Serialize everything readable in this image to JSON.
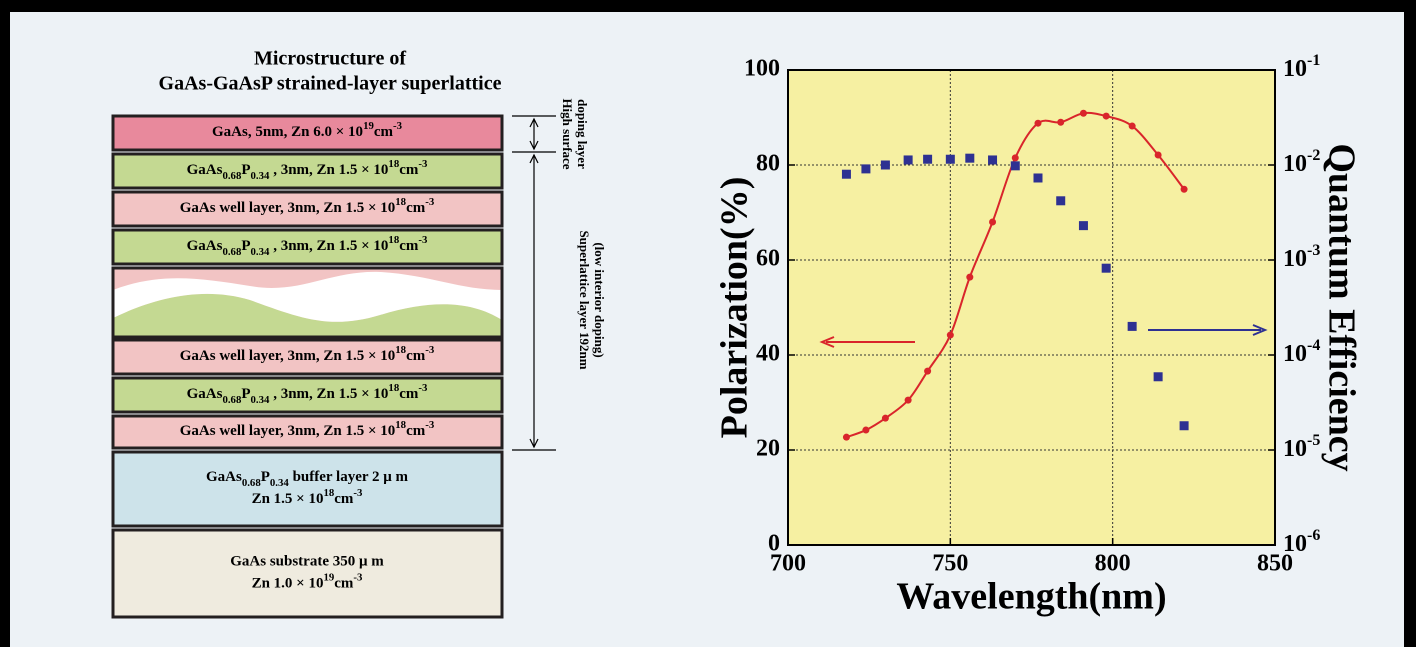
{
  "diagram": {
    "title": [
      "Microstructure of",
      "GaAs-GaAsP strained-layer superlattice"
    ],
    "layers": [
      {
        "color": "#e8899c",
        "lines": [
          [
            "GaAs, 5nm, Zn 6.0 × 10",
            {
              "sup": "19"
            },
            "cm",
            {
              "sup": "-3"
            }
          ]
        ]
      },
      {
        "color": "#c4d992",
        "lines": [
          [
            "GaAs",
            {
              "sub": "0.68"
            },
            "P",
            {
              "sub": "0.34"
            },
            " , 3nm, Zn 1.5 × 10",
            {
              "sup": "18"
            },
            "cm",
            {
              "sup": "-3"
            }
          ]
        ]
      },
      {
        "color": "#f2c4c4",
        "lines": [
          [
            "GaAs well layer, 3nm, Zn 1.5 × 10",
            {
              "sup": "18"
            },
            "cm",
            {
              "sup": "-3"
            }
          ]
        ]
      },
      {
        "color": "#c4d992",
        "lines": [
          [
            "GaAs",
            {
              "sub": "0.68"
            },
            "P",
            {
              "sub": "0.34"
            },
            " , 3nm, Zn 1.5 × 10",
            {
              "sup": "18"
            },
            "cm",
            {
              "sup": "-3"
            }
          ]
        ]
      },
      {
        "color": "#f2c4c4",
        "lines": []
      },
      {
        "color": "#f2c4c4",
        "lines": [
          [
            "GaAs well layer, 3nm, Zn 1.5 × 10",
            {
              "sup": "18"
            },
            "cm",
            {
              "sup": "-3"
            }
          ]
        ]
      },
      {
        "color": "#c4d992",
        "lines": [
          [
            "GaAs",
            {
              "sub": "0.68"
            },
            "P",
            {
              "sub": "0.34"
            },
            " , 3nm, Zn 1.5 × 10",
            {
              "sup": "18"
            },
            "cm",
            {
              "sup": "-3"
            }
          ]
        ]
      },
      {
        "color": "#f2c4c4",
        "lines": [
          [
            "GaAs well layer, 3nm, Zn 1.5 × 10",
            {
              "sup": "18"
            },
            "cm",
            {
              "sup": "-3"
            }
          ]
        ]
      },
      {
        "color": "#cde3ea",
        "lines": [
          [
            "GaAs",
            {
              "sub": "0.68"
            },
            "P",
            {
              "sub": "0.34"
            },
            " buffer layer 2 μ m"
          ],
          [
            "Zn 1.5 × 10",
            {
              "sup": "18"
            },
            "cm",
            {
              "sup": "-3"
            }
          ]
        ]
      },
      {
        "color": "#efebdf",
        "lines": [
          [
            "GaAs substrate 350 μ m"
          ],
          [
            "Zn 1.0 × 10",
            {
              "sup": "19"
            },
            "cm",
            {
              "sup": "-3"
            }
          ]
        ]
      }
    ],
    "brackets": [
      {
        "lines": [
          "High surface",
          "doping layer"
        ]
      },
      {
        "lines": [
          "Superlattice layer 192nm",
          "(low interior doping)"
        ]
      }
    ]
  },
  "chart_data": {
    "type": "line",
    "x_label": "Wavelength(nm)",
    "y_label": "Polarization(%)",
    "y2_label": "Quantum Efficiency",
    "x": [
      718,
      724,
      730,
      737,
      743,
      750,
      756,
      763,
      770,
      777,
      784,
      791,
      798,
      806,
      814,
      822
    ],
    "series": [
      {
        "color": "#d9252b",
        "marker": "circle",
        "values": [
          22.7,
          24.2,
          26.7,
          30.5,
          36.6,
          44.2,
          56.4,
          68,
          81.5,
          88.8,
          89,
          90.9,
          90.3,
          88.2,
          82.1,
          74.9
        ]
      },
      {
        "color": "#2e3192",
        "marker": "square",
        "axis": "y2",
        "values": [
          0.008,
          0.0091,
          0.01,
          0.0113,
          0.0115,
          0.0115,
          0.0118,
          0.0113,
          0.0098,
          0.0073,
          0.0042,
          0.0023,
          0.00082,
          0.0002,
          5.9e-05,
          1.8e-05
        ]
      }
    ],
    "xlim": [
      700,
      850
    ],
    "xticks": [
      700,
      750,
      800,
      850
    ],
    "ylim": [
      0,
      100
    ],
    "yticks": [
      0,
      20,
      40,
      60,
      80,
      100
    ],
    "y2lim": [
      1e-06,
      0.1
    ],
    "y2log": true,
    "y2ticks": [
      {
        "value": 1e-06,
        "label": "10",
        "sup": "-6"
      },
      {
        "value": 1e-05,
        "label": "10",
        "sup": "-5"
      },
      {
        "value": 0.0001,
        "label": "10",
        "sup": "-4"
      },
      {
        "value": 0.001,
        "label": "10",
        "sup": "-3"
      },
      {
        "value": 0.01,
        "label": "10",
        "sup": "-2"
      },
      {
        "value": 0.1,
        "label": "10",
        "sup": "-1"
      }
    ],
    "grid": true,
    "plot_background": "#f6f0a2"
  }
}
